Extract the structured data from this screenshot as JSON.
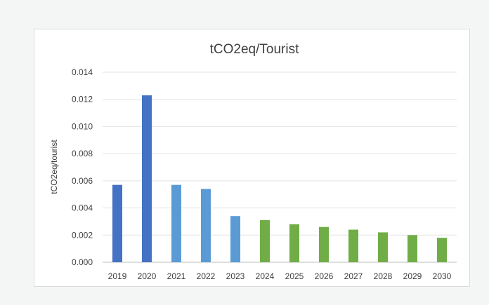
{
  "chart_data": {
    "type": "bar",
    "title": "tCO2eq/Tourist",
    "xlabel": "",
    "ylabel": "tCO2eq/tourist",
    "ylim": [
      0,
      0.014
    ],
    "yticks": [
      "0.000",
      "0.002",
      "0.004",
      "0.006",
      "0.008",
      "0.010",
      "0.012",
      "0.014"
    ],
    "grid": true,
    "legend": "none",
    "categories": [
      "2019",
      "2020",
      "2021",
      "2022",
      "2023",
      "2024",
      "2025",
      "2026",
      "2027",
      "2028",
      "2029",
      "2030"
    ],
    "values": [
      0.0057,
      0.0123,
      0.0057,
      0.0054,
      0.0034,
      0.0031,
      0.0028,
      0.0026,
      0.0024,
      0.0022,
      0.002,
      0.0018
    ],
    "bar_colors": [
      "#4472c4",
      "#4472c4",
      "#5b9bd5",
      "#5b9bd5",
      "#5b9bd5",
      "#70ad47",
      "#70ad47",
      "#70ad47",
      "#70ad47",
      "#70ad47",
      "#70ad47",
      "#70ad47"
    ]
  }
}
